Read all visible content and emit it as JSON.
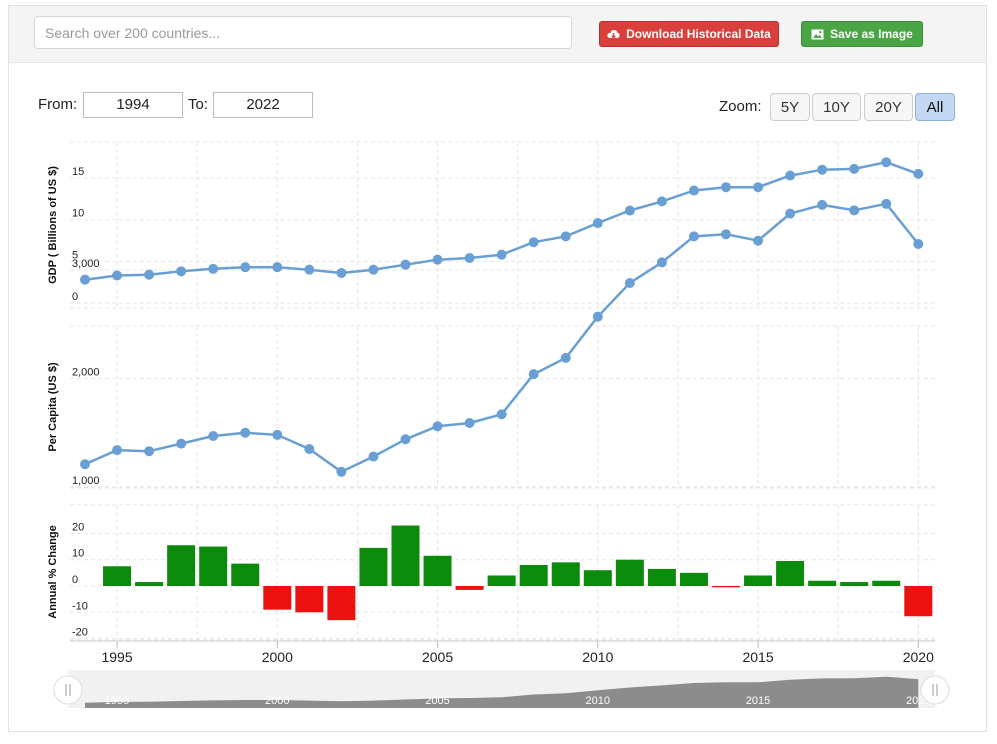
{
  "search": {
    "placeholder": "Search over 200 countries..."
  },
  "toolbar": {
    "download_label": "Download Historical Data",
    "save_label": "Save as Image",
    "download_icon": "cloud-download-icon",
    "save_icon": "image-icon",
    "download_color": "#d9403b",
    "save_color": "#4aa544"
  },
  "range": {
    "from_label": "From:",
    "from_value": "1994",
    "to_label": "To:",
    "to_value": "2022"
  },
  "zoom": {
    "label": "Zoom:",
    "buttons": [
      "5Y",
      "10Y",
      "20Y",
      "All"
    ],
    "active": "All"
  },
  "chart_data": [
    {
      "type": "line",
      "ylabel": "GDP ( Billions of US $)",
      "yticks": [
        "0",
        "5",
        "10",
        "15"
      ],
      "ylim": [
        0,
        17
      ],
      "color": "#6a9fd4",
      "x": [
        1994,
        1995,
        1996,
        1997,
        1998,
        1999,
        2000,
        2001,
        2002,
        2003,
        2004,
        2005,
        2006,
        2007,
        2008,
        2009,
        2010,
        2011,
        2012,
        2013,
        2014,
        2015,
        2016,
        2017,
        2018,
        2019,
        2020
      ],
      "values": [
        2.8,
        3.3,
        3.4,
        3.8,
        4.1,
        4.3,
        4.3,
        4.0,
        3.6,
        4.0,
        4.6,
        5.2,
        5.4,
        5.8,
        7.3,
        8.0,
        9.6,
        11.1,
        12.2,
        13.5,
        13.9,
        13.9,
        15.3,
        16.0,
        16.1,
        16.9,
        15.5
      ],
      "grid": true
    },
    {
      "type": "line",
      "ylabel": "Per Capita (US $)",
      "yticks": [
        "1,000",
        "2,000",
        "3,000"
      ],
      "ylim": [
        1000,
        3650
      ],
      "color": "#6a9fd4",
      "x": [
        1994,
        1995,
        1996,
        1997,
        1998,
        1999,
        2000,
        2001,
        2002,
        2003,
        2004,
        2005,
        2006,
        2007,
        2008,
        2009,
        2010,
        2011,
        2012,
        2013,
        2014,
        2015,
        2016,
        2017,
        2018,
        2019,
        2020
      ],
      "values": [
        1210,
        1340,
        1330,
        1400,
        1470,
        1500,
        1480,
        1350,
        1140,
        1280,
        1440,
        1560,
        1590,
        1670,
        2040,
        2190,
        2570,
        2880,
        3070,
        3310,
        3330,
        3270,
        3520,
        3600,
        3550,
        3610,
        3240
      ],
      "grid": true
    },
    {
      "type": "bar",
      "ylabel": "Annual % Change",
      "yticks": [
        "-20",
        "-10",
        "0",
        "10",
        "20"
      ],
      "ylim": [
        -20,
        20
      ],
      "positive_color": "#0c8a0c",
      "negative_color": "#ee1111",
      "x": [
        1995,
        1996,
        1997,
        1998,
        1999,
        2000,
        2001,
        2002,
        2003,
        2004,
        2005,
        2006,
        2007,
        2008,
        2009,
        2010,
        2011,
        2012,
        2013,
        2014,
        2015,
        2016,
        2017,
        2018,
        2019,
        2020
      ],
      "values": [
        7.5,
        1.5,
        15.5,
        15,
        8.5,
        -9,
        -10,
        -13,
        14.5,
        23,
        11.5,
        -1.5,
        4,
        8,
        9,
        6,
        10,
        6.5,
        5,
        -0.5,
        4,
        9.5,
        2,
        1.5,
        2,
        -11.5
      ],
      "grid": true
    }
  ],
  "x_axis": {
    "ticks": [
      "1995",
      "2000",
      "2005",
      "2010",
      "2015",
      "2020"
    ]
  },
  "navigator": {
    "labels": [
      "1995",
      "2000",
      "2005",
      "2010",
      "2015",
      "2020"
    ]
  }
}
